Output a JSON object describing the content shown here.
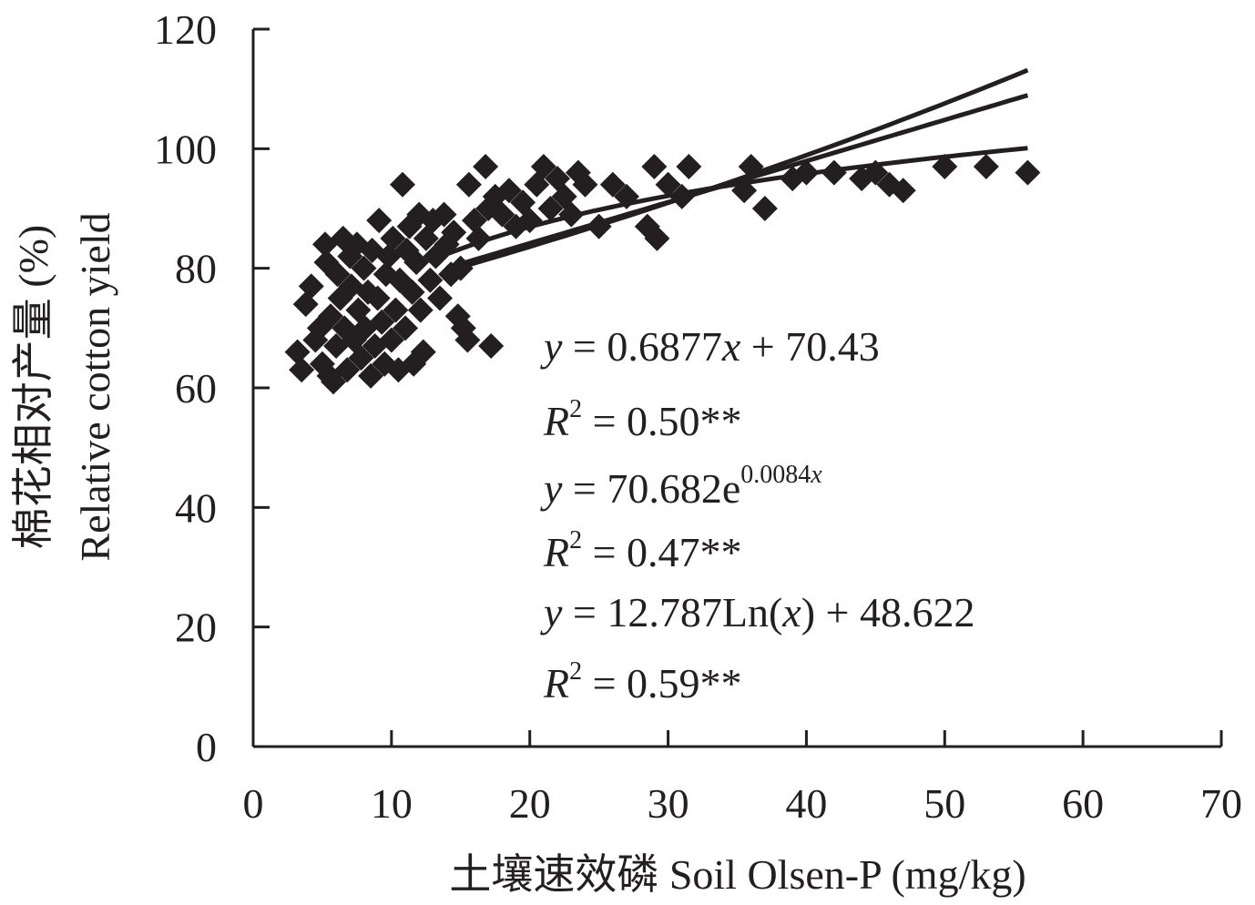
{
  "chart_data": {
    "type": "scatter",
    "title": "",
    "xlabel": "土壤速效磷 Soil Olsen-P (mg/kg)",
    "ylabel_line1": "棉花相对产量 (%)",
    "ylabel_line2": "Relative cotton yield",
    "xlim": [
      0,
      70
    ],
    "ylim": [
      0,
      120
    ],
    "x_ticks": [
      "0",
      "10",
      "20",
      "30",
      "40",
      "50",
      "60",
      "70"
    ],
    "y_ticks": [
      "0",
      "20",
      "40",
      "60",
      "80",
      "100",
      "120"
    ],
    "grid": false,
    "legend": "none",
    "marker": "diamond",
    "marker_color": "#231f20",
    "fits": [
      {
        "type": "linear",
        "slope": 0.6877,
        "intercept": 70.43,
        "x_range": [
          14,
          56
        ]
      },
      {
        "type": "exponential",
        "a": 70.682,
        "b": 0.0084,
        "x_range": [
          14,
          56
        ]
      },
      {
        "type": "logarithmic",
        "a": 12.787,
        "b": 48.622,
        "x_range": [
          14,
          56
        ]
      }
    ],
    "annotations": {
      "eq1": {
        "y": "y",
        "rest": " = 0.6877",
        "x": "x",
        "tail": " + 70.43"
      },
      "r1": {
        "R": "R",
        "sup": "2",
        "rest": " = 0.50**"
      },
      "eq2": {
        "y": "y",
        "rest": " = 70.682e",
        "sup": "0.0084",
        "supx": "x"
      },
      "r2": {
        "R": "R",
        "sup": "2",
        "rest": " = 0.47**"
      },
      "eq3": {
        "y": "y",
        "rest": " = 12.787Ln(",
        "x": "x",
        "tail": ") + 48.622"
      },
      "r3": {
        "R": "R",
        "sup": "2",
        "rest": " = 0.59**"
      }
    },
    "points": [
      [
        3.2,
        66
      ],
      [
        3.5,
        63
      ],
      [
        3.8,
        74
      ],
      [
        4.2,
        77
      ],
      [
        4.5,
        68
      ],
      [
        4.8,
        70
      ],
      [
        5.0,
        64
      ],
      [
        5.2,
        84
      ],
      [
        5.3,
        81
      ],
      [
        5.5,
        62
      ],
      [
        5.6,
        72
      ],
      [
        5.8,
        61
      ],
      [
        6.0,
        67
      ],
      [
        6.1,
        79
      ],
      [
        6.3,
        75
      ],
      [
        6.5,
        85
      ],
      [
        6.6,
        70
      ],
      [
        6.8,
        63
      ],
      [
        7.0,
        82
      ],
      [
        7.1,
        77
      ],
      [
        7.3,
        68
      ],
      [
        7.5,
        84
      ],
      [
        7.6,
        73
      ],
      [
        7.8,
        65
      ],
      [
        8.0,
        80
      ],
      [
        8.1,
        70
      ],
      [
        8.3,
        76
      ],
      [
        8.5,
        62
      ],
      [
        8.6,
        83
      ],
      [
        8.8,
        67
      ],
      [
        9.0,
        75
      ],
      [
        9.1,
        88
      ],
      [
        9.3,
        71
      ],
      [
        9.5,
        64
      ],
      [
        9.6,
        79
      ],
      [
        9.8,
        82
      ],
      [
        10.0,
        68
      ],
      [
        10.1,
        85
      ],
      [
        10.3,
        73
      ],
      [
        10.5,
        63
      ],
      [
        10.6,
        78
      ],
      [
        10.8,
        94
      ],
      [
        11.0,
        70
      ],
      [
        11.1,
        83
      ],
      [
        11.3,
        87
      ],
      [
        11.5,
        76
      ],
      [
        11.6,
        64
      ],
      [
        11.8,
        81
      ],
      [
        12.0,
        89
      ],
      [
        12.1,
        73
      ],
      [
        12.3,
        66
      ],
      [
        12.5,
        85
      ],
      [
        12.8,
        78
      ],
      [
        13.0,
        88
      ],
      [
        13.2,
        82
      ],
      [
        13.5,
        75
      ],
      [
        13.8,
        89
      ],
      [
        14.0,
        84
      ],
      [
        14.3,
        79
      ],
      [
        14.5,
        86
      ],
      [
        14.8,
        72
      ],
      [
        15.0,
        80
      ],
      [
        15.2,
        70
      ],
      [
        15.5,
        68
      ],
      [
        15.6,
        94
      ],
      [
        16.0,
        88
      ],
      [
        16.3,
        85
      ],
      [
        16.8,
        97
      ],
      [
        17.0,
        90
      ],
      [
        17.2,
        67
      ],
      [
        17.5,
        92
      ],
      [
        18.0,
        89
      ],
      [
        18.5,
        93
      ],
      [
        19.0,
        87
      ],
      [
        19.5,
        91
      ],
      [
        20.0,
        88
      ],
      [
        20.5,
        94
      ],
      [
        21.0,
        97
      ],
      [
        21.5,
        90
      ],
      [
        22.0,
        95
      ],
      [
        22.5,
        92
      ],
      [
        23.0,
        89
      ],
      [
        23.5,
        96
      ],
      [
        24.0,
        94
      ],
      [
        25.0,
        87
      ],
      [
        26.0,
        94
      ],
      [
        27.0,
        92
      ],
      [
        28.5,
        87
      ],
      [
        29.0,
        97
      ],
      [
        29.2,
        85
      ],
      [
        30.0,
        94
      ],
      [
        31.5,
        97
      ],
      [
        31.0,
        92
      ],
      [
        35.5,
        93
      ],
      [
        36.0,
        97
      ],
      [
        37.0,
        90
      ],
      [
        39.0,
        95
      ],
      [
        40.0,
        96
      ],
      [
        42.0,
        96
      ],
      [
        44.0,
        95
      ],
      [
        45.0,
        96
      ],
      [
        46.0,
        94
      ],
      [
        47.0,
        93
      ],
      [
        50.0,
        97
      ],
      [
        53.0,
        97
      ],
      [
        56.0,
        96
      ]
    ]
  }
}
